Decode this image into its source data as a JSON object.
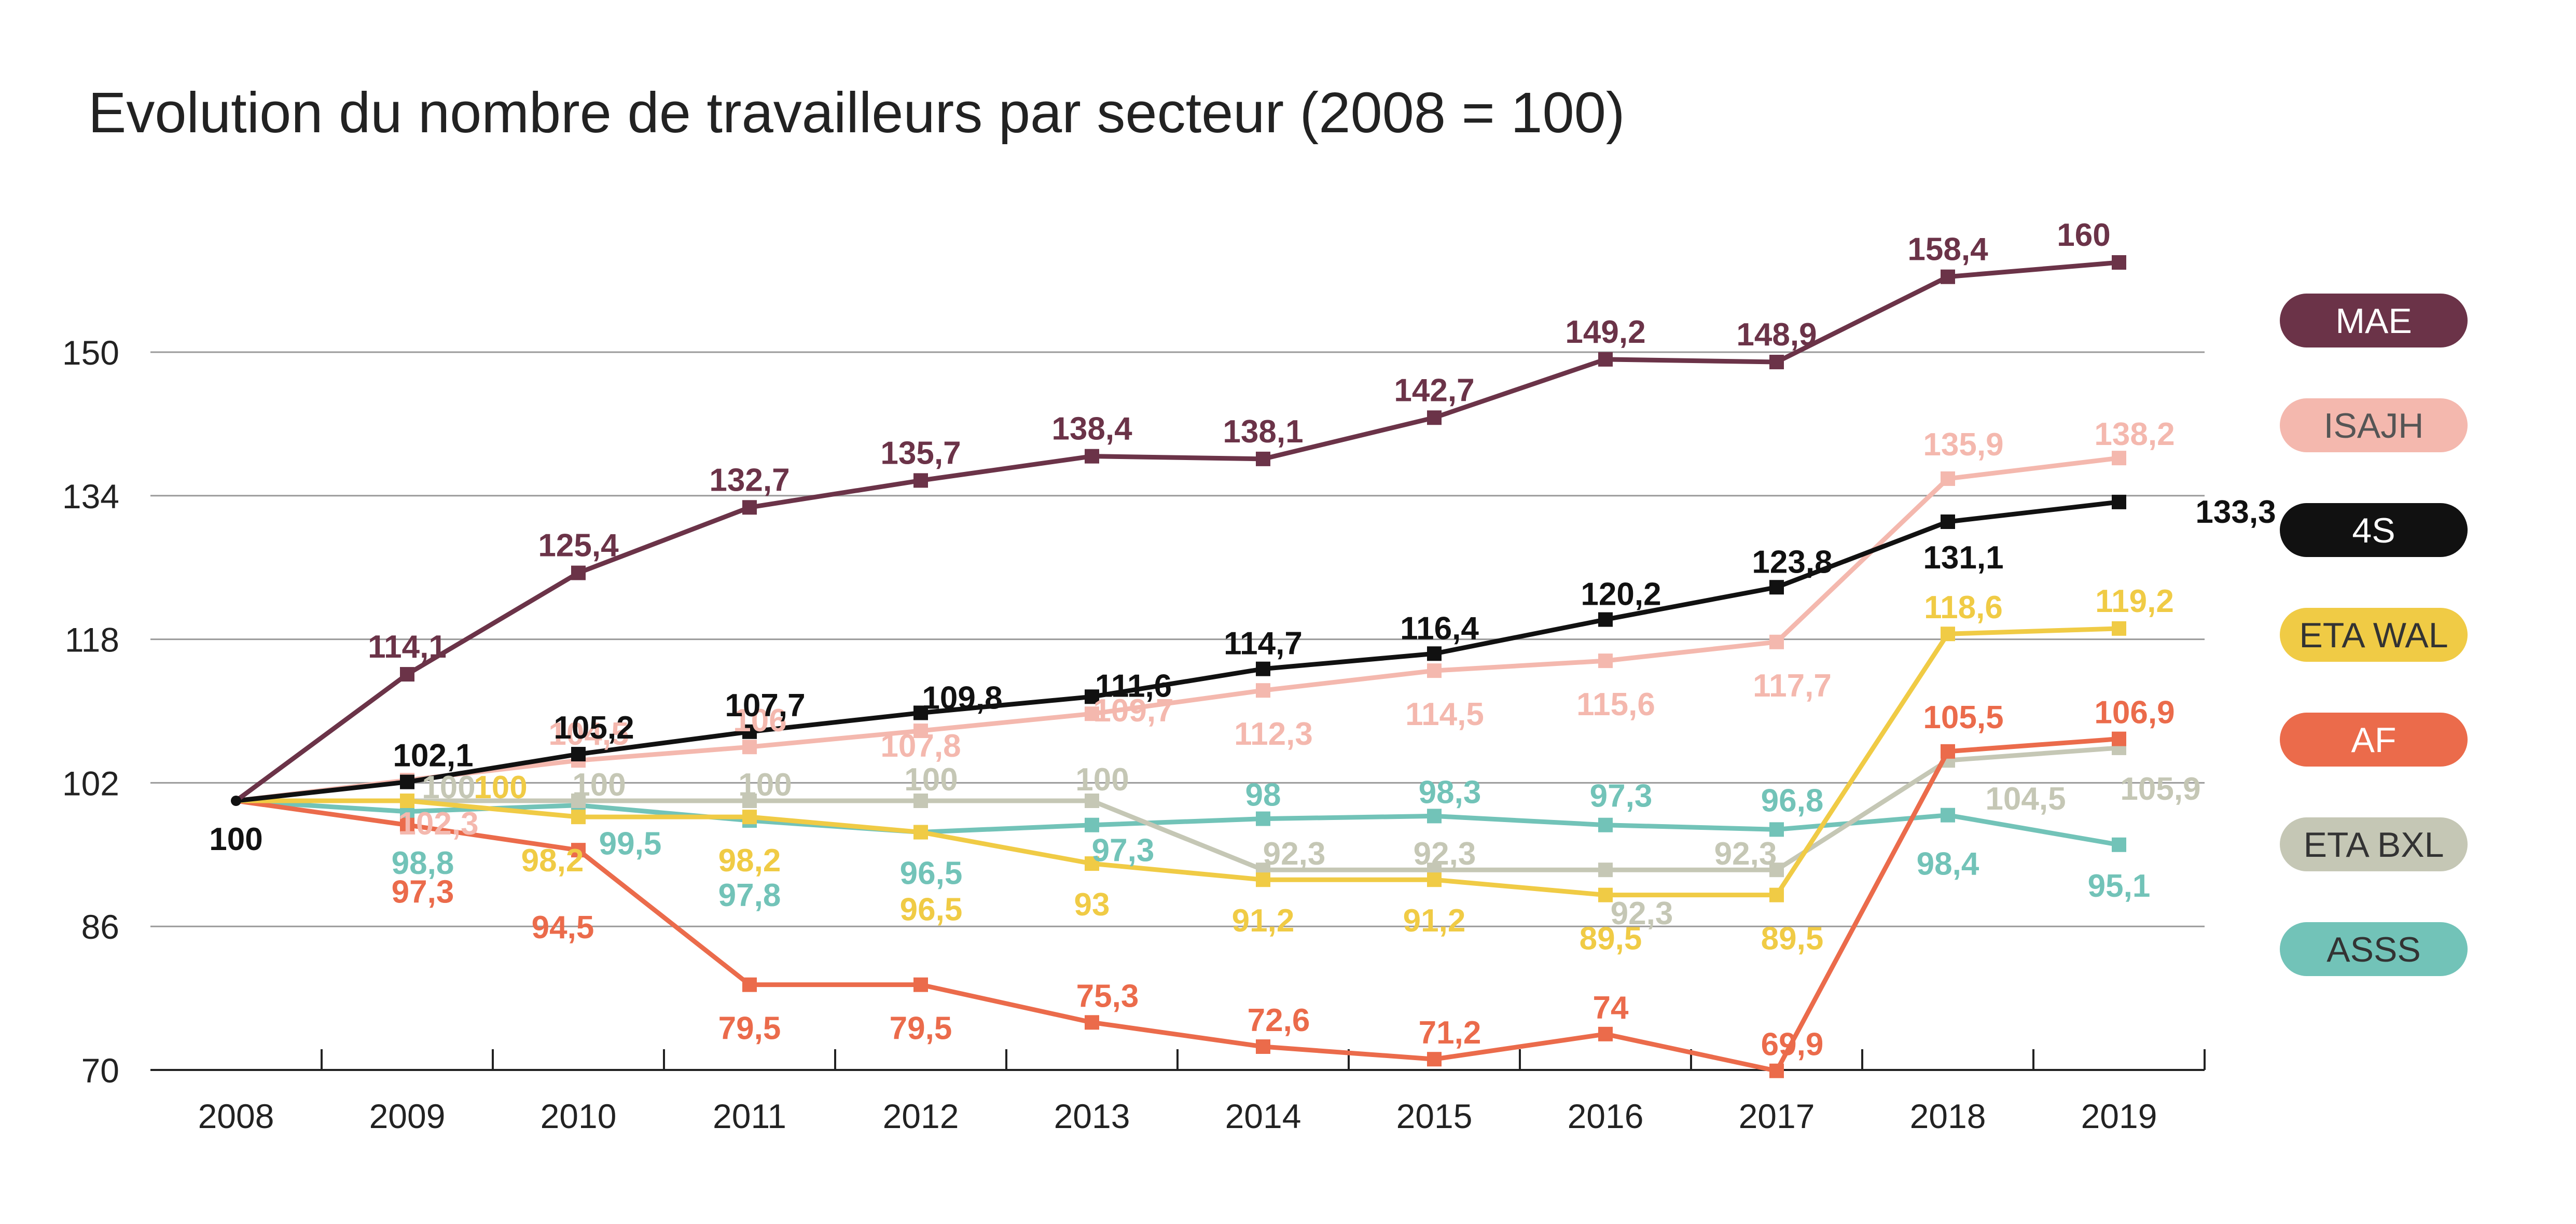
{
  "chart_data": {
    "type": "line",
    "title": "Evolution du nombre de travailleurs par secteur (2008 = 100)",
    "xlabel": "",
    "ylabel": "",
    "categories": [
      "2008",
      "2009",
      "2010",
      "2011",
      "2012",
      "2013",
      "2014",
      "2015",
      "2016",
      "2017",
      "2018",
      "2019"
    ],
    "ylim": [
      70,
      160
    ],
    "yticks": [
      70,
      86,
      102,
      118,
      134,
      150
    ],
    "ytick_labels": [
      "70",
      "86",
      "102",
      "118",
      "134",
      "150"
    ],
    "grid": true,
    "legend_position": "right",
    "series": [
      {
        "name": "MAE",
        "color": "#6b3348",
        "text_color": "#ffffff",
        "values": [
          100,
          114.1,
          125.4,
          132.7,
          135.7,
          138.4,
          138.1,
          142.7,
          149.2,
          148.9,
          158.4,
          160
        ],
        "labels": [
          null,
          "114,1",
          "125,4",
          "132,7",
          "135,7",
          "138,4",
          "138,1",
          "142,7",
          "149,2",
          "148,9",
          "158,4",
          "160"
        ]
      },
      {
        "name": "ISAJH",
        "color": "#f4b8ae",
        "text_color": "#555555",
        "values": [
          100,
          102.3,
          104.5,
          106,
          107.8,
          109.7,
          112.3,
          114.5,
          115.6,
          117.7,
          135.9,
          138.2
        ],
        "labels": [
          null,
          "102,3",
          "104,5",
          "106",
          "107,8",
          "109,7",
          "112,3",
          "114,5",
          "115,6",
          "117,7",
          "135,9",
          "138,2"
        ]
      },
      {
        "name": "4S",
        "color": "#111111",
        "text_color": "#ffffff",
        "values": [
          100,
          102.1,
          105.2,
          107.7,
          109.8,
          111.6,
          114.7,
          116.4,
          120.2,
          123.8,
          131.1,
          133.3
        ],
        "labels": [
          "100",
          "102,1",
          "105,2",
          "107,7",
          "109,8",
          "111,6",
          "114,7",
          "116,4",
          "120,2",
          "123,8",
          "131,1",
          "133,3"
        ]
      },
      {
        "name": "ETA WAL",
        "color": "#f0cb45",
        "text_color": "#333333",
        "values": [
          100,
          100,
          98.2,
          98.2,
          96.5,
          93,
          91.2,
          91.2,
          89.5,
          89.5,
          118.6,
          119.2
        ],
        "labels": [
          null,
          "100",
          "98,2",
          "98,2",
          "96,5",
          "93",
          "91,2",
          "91,2",
          "89,5",
          "89,5",
          "118,6",
          "119,2"
        ]
      },
      {
        "name": "AF",
        "color": "#eb6b4b",
        "text_color": "#ffffff",
        "values": [
          100,
          97.3,
          94.5,
          79.5,
          79.5,
          75.3,
          72.6,
          71.2,
          74,
          69.9,
          105.5,
          106.9
        ],
        "labels": [
          null,
          "97,3",
          "94,5",
          "79,5",
          "79,5",
          "75,3",
          "72,6",
          "71,2",
          "74",
          "69,9",
          "105,5",
          "106,9"
        ]
      },
      {
        "name": "ETA BXL",
        "color": "#c5c7b5",
        "text_color": "#333333",
        "values": [
          100,
          100,
          100,
          100,
          100,
          100,
          92.3,
          92.3,
          92.3,
          92.3,
          104.5,
          105.9
        ],
        "labels": [
          null,
          "100",
          "100",
          "100",
          "100",
          "100",
          "92,3",
          "92,3",
          "92,3",
          "92,3",
          "104,5",
          "105,9"
        ]
      },
      {
        "name": "ASSS",
        "color": "#72c3b8",
        "text_color": "#333333",
        "values": [
          100,
          98.8,
          99.5,
          97.8,
          96.5,
          97.3,
          98,
          98.3,
          97.3,
          96.8,
          98.4,
          95.1
        ],
        "labels": [
          null,
          "98,8",
          "99,5",
          "97,8",
          "96,5",
          "97,3",
          "98",
          "98,3",
          "97,3",
          "96,8",
          "98,4",
          "95,1"
        ]
      }
    ]
  }
}
